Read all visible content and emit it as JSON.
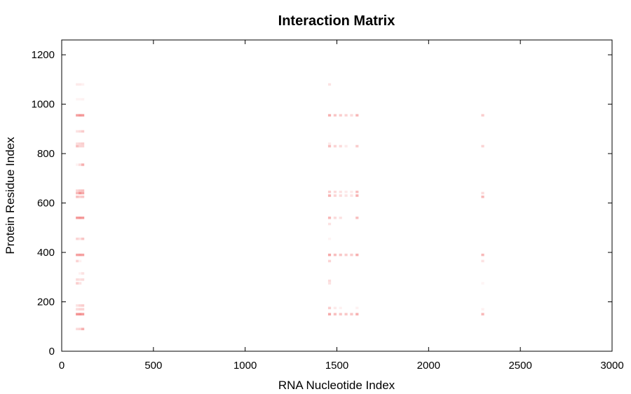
{
  "chart_data": {
    "type": "heatmap",
    "title": "Interaction Matrix",
    "xlabel": "RNA Nucleotide Index",
    "ylabel": "Protein Residue Index",
    "xlim": [
      0,
      3000
    ],
    "ylim": [
      0,
      1260
    ],
    "xticks": [
      "0",
      "500",
      "1000",
      "1500",
      "2000",
      "2500",
      "3000"
    ],
    "yticks": [
      "0",
      "200",
      "400",
      "600",
      "800",
      "1000",
      "1200"
    ],
    "xtick_values": [
      0,
      500,
      1000,
      1500,
      2000,
      2500,
      3000
    ],
    "ytick_values": [
      0,
      200,
      400,
      600,
      800,
      1000,
      1200
    ],
    "cell_size": [
      16,
      10
    ],
    "grid": false,
    "color_max": "#f07070",
    "color_min": "#ffffff",
    "cells": [
      {
        "x": 85,
        "y": 1080,
        "v": 0.15
      },
      {
        "x": 100,
        "y": 1080,
        "v": 0.15
      },
      {
        "x": 115,
        "y": 1080,
        "v": 0.1
      },
      {
        "x": 85,
        "y": 1020,
        "v": 0.08
      },
      {
        "x": 100,
        "y": 1020,
        "v": 0.08
      },
      {
        "x": 115,
        "y": 1020,
        "v": 0.1
      },
      {
        "x": 85,
        "y": 955,
        "v": 0.65
      },
      {
        "x": 100,
        "y": 955,
        "v": 0.75
      },
      {
        "x": 115,
        "y": 955,
        "v": 0.7
      },
      {
        "x": 85,
        "y": 890,
        "v": 0.2
      },
      {
        "x": 100,
        "y": 890,
        "v": 0.25
      },
      {
        "x": 115,
        "y": 890,
        "v": 0.35
      },
      {
        "x": 85,
        "y": 840,
        "v": 0.25
      },
      {
        "x": 100,
        "y": 840,
        "v": 0.3
      },
      {
        "x": 115,
        "y": 840,
        "v": 0.35
      },
      {
        "x": 85,
        "y": 830,
        "v": 0.45
      },
      {
        "x": 100,
        "y": 830,
        "v": 0.3
      },
      {
        "x": 115,
        "y": 830,
        "v": 0.3
      },
      {
        "x": 85,
        "y": 755,
        "v": 0.1
      },
      {
        "x": 100,
        "y": 755,
        "v": 0.25
      },
      {
        "x": 115,
        "y": 755,
        "v": 0.55
      },
      {
        "x": 85,
        "y": 650,
        "v": 0.3
      },
      {
        "x": 100,
        "y": 650,
        "v": 0.4
      },
      {
        "x": 115,
        "y": 650,
        "v": 0.45
      },
      {
        "x": 85,
        "y": 640,
        "v": 0.5
      },
      {
        "x": 100,
        "y": 640,
        "v": 0.75
      },
      {
        "x": 115,
        "y": 640,
        "v": 0.6
      },
      {
        "x": 85,
        "y": 625,
        "v": 0.45
      },
      {
        "x": 100,
        "y": 625,
        "v": 0.35
      },
      {
        "x": 115,
        "y": 625,
        "v": 0.4
      },
      {
        "x": 85,
        "y": 540,
        "v": 0.7
      },
      {
        "x": 100,
        "y": 540,
        "v": 0.75
      },
      {
        "x": 115,
        "y": 540,
        "v": 0.7
      },
      {
        "x": 85,
        "y": 455,
        "v": 0.3
      },
      {
        "x": 100,
        "y": 455,
        "v": 0.2
      },
      {
        "x": 115,
        "y": 455,
        "v": 0.4
      },
      {
        "x": 85,
        "y": 390,
        "v": 0.65
      },
      {
        "x": 100,
        "y": 390,
        "v": 0.7
      },
      {
        "x": 115,
        "y": 390,
        "v": 0.65
      },
      {
        "x": 85,
        "y": 365,
        "v": 0.3
      },
      {
        "x": 100,
        "y": 365,
        "v": 0.1
      },
      {
        "x": 100,
        "y": 315,
        "v": 0.1
      },
      {
        "x": 115,
        "y": 315,
        "v": 0.2
      },
      {
        "x": 85,
        "y": 290,
        "v": 0.25
      },
      {
        "x": 100,
        "y": 290,
        "v": 0.2
      },
      {
        "x": 115,
        "y": 290,
        "v": 0.25
      },
      {
        "x": 85,
        "y": 275,
        "v": 0.35
      },
      {
        "x": 100,
        "y": 275,
        "v": 0.2
      },
      {
        "x": 85,
        "y": 185,
        "v": 0.2
      },
      {
        "x": 100,
        "y": 185,
        "v": 0.3
      },
      {
        "x": 115,
        "y": 185,
        "v": 0.35
      },
      {
        "x": 85,
        "y": 170,
        "v": 0.25
      },
      {
        "x": 100,
        "y": 170,
        "v": 0.3
      },
      {
        "x": 115,
        "y": 170,
        "v": 0.3
      },
      {
        "x": 85,
        "y": 150,
        "v": 0.75
      },
      {
        "x": 100,
        "y": 150,
        "v": 0.8
      },
      {
        "x": 115,
        "y": 150,
        "v": 0.7
      },
      {
        "x": 85,
        "y": 90,
        "v": 0.25
      },
      {
        "x": 100,
        "y": 90,
        "v": 0.3
      },
      {
        "x": 115,
        "y": 90,
        "v": 0.55
      },
      {
        "x": 1460,
        "y": 1080,
        "v": 0.2
      },
      {
        "x": 1460,
        "y": 955,
        "v": 0.55
      },
      {
        "x": 1490,
        "y": 955,
        "v": 0.4
      },
      {
        "x": 1520,
        "y": 955,
        "v": 0.35
      },
      {
        "x": 1550,
        "y": 955,
        "v": 0.3
      },
      {
        "x": 1580,
        "y": 955,
        "v": 0.25
      },
      {
        "x": 1610,
        "y": 955,
        "v": 0.5
      },
      {
        "x": 1460,
        "y": 840,
        "v": 0.15
      },
      {
        "x": 1460,
        "y": 830,
        "v": 0.45
      },
      {
        "x": 1490,
        "y": 830,
        "v": 0.3
      },
      {
        "x": 1520,
        "y": 830,
        "v": 0.25
      },
      {
        "x": 1550,
        "y": 830,
        "v": 0.15
      },
      {
        "x": 1610,
        "y": 830,
        "v": 0.35
      },
      {
        "x": 1460,
        "y": 645,
        "v": 0.35
      },
      {
        "x": 1490,
        "y": 645,
        "v": 0.25
      },
      {
        "x": 1520,
        "y": 645,
        "v": 0.2
      },
      {
        "x": 1550,
        "y": 645,
        "v": 0.15
      },
      {
        "x": 1580,
        "y": 645,
        "v": 0.15
      },
      {
        "x": 1610,
        "y": 645,
        "v": 0.45
      },
      {
        "x": 1460,
        "y": 630,
        "v": 0.55
      },
      {
        "x": 1490,
        "y": 630,
        "v": 0.3
      },
      {
        "x": 1520,
        "y": 630,
        "v": 0.25
      },
      {
        "x": 1550,
        "y": 630,
        "v": 0.2
      },
      {
        "x": 1580,
        "y": 630,
        "v": 0.2
      },
      {
        "x": 1610,
        "y": 630,
        "v": 0.55
      },
      {
        "x": 1460,
        "y": 540,
        "v": 0.5
      },
      {
        "x": 1490,
        "y": 540,
        "v": 0.25
      },
      {
        "x": 1520,
        "y": 540,
        "v": 0.2
      },
      {
        "x": 1610,
        "y": 540,
        "v": 0.45
      },
      {
        "x": 1460,
        "y": 515,
        "v": 0.2
      },
      {
        "x": 1460,
        "y": 455,
        "v": 0.08
      },
      {
        "x": 1460,
        "y": 390,
        "v": 0.6
      },
      {
        "x": 1490,
        "y": 390,
        "v": 0.45
      },
      {
        "x": 1520,
        "y": 390,
        "v": 0.4
      },
      {
        "x": 1550,
        "y": 390,
        "v": 0.35
      },
      {
        "x": 1580,
        "y": 390,
        "v": 0.35
      },
      {
        "x": 1610,
        "y": 390,
        "v": 0.55
      },
      {
        "x": 1460,
        "y": 365,
        "v": 0.3
      },
      {
        "x": 1460,
        "y": 285,
        "v": 0.25
      },
      {
        "x": 1460,
        "y": 275,
        "v": 0.2
      },
      {
        "x": 1460,
        "y": 175,
        "v": 0.35
      },
      {
        "x": 1490,
        "y": 175,
        "v": 0.15
      },
      {
        "x": 1520,
        "y": 175,
        "v": 0.1
      },
      {
        "x": 1610,
        "y": 175,
        "v": 0.1
      },
      {
        "x": 1460,
        "y": 150,
        "v": 0.6
      },
      {
        "x": 1490,
        "y": 150,
        "v": 0.45
      },
      {
        "x": 1520,
        "y": 150,
        "v": 0.4
      },
      {
        "x": 1550,
        "y": 150,
        "v": 0.4
      },
      {
        "x": 1580,
        "y": 150,
        "v": 0.4
      },
      {
        "x": 1610,
        "y": 150,
        "v": 0.55
      },
      {
        "x": 2295,
        "y": 955,
        "v": 0.35
      },
      {
        "x": 2295,
        "y": 830,
        "v": 0.3
      },
      {
        "x": 2295,
        "y": 640,
        "v": 0.25
      },
      {
        "x": 2295,
        "y": 625,
        "v": 0.5
      },
      {
        "x": 2295,
        "y": 390,
        "v": 0.5
      },
      {
        "x": 2295,
        "y": 365,
        "v": 0.2
      },
      {
        "x": 2295,
        "y": 275,
        "v": 0.08
      },
      {
        "x": 2295,
        "y": 170,
        "v": 0.1
      },
      {
        "x": 2295,
        "y": 150,
        "v": 0.5
      }
    ]
  }
}
